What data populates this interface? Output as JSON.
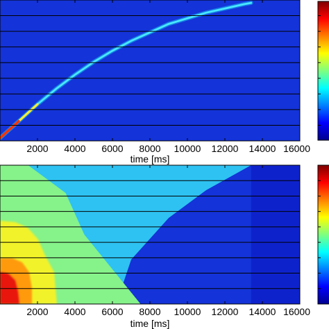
{
  "chart_data": [
    {
      "type": "heatmap",
      "panel": "top",
      "xlabel": "time [ms]",
      "xlim": [
        0,
        16000
      ],
      "xticks": [
        2000,
        4000,
        6000,
        8000,
        10000,
        12000,
        14000,
        16000
      ],
      "grid": "horizontal",
      "background_color": "#1433d8",
      "colormap": "jet",
      "colorbar": "right",
      "ridge": {
        "x": [
          0,
          1000,
          2000,
          3000,
          4000,
          5000,
          6000,
          7000,
          8000,
          9000,
          10000,
          11000,
          12000,
          13000,
          13400
        ],
        "y": [
          0.02,
          0.14,
          0.26,
          0.37,
          0.47,
          0.56,
          0.64,
          0.71,
          0.77,
          0.83,
          0.87,
          0.91,
          0.94,
          0.97,
          0.98
        ],
        "peak_color_start": "#ff3000",
        "peak_color_end": "#3fd8ff"
      }
    },
    {
      "type": "heatmap",
      "panel": "bottom",
      "xlabel": "time [ms]",
      "xlim": [
        0,
        16000
      ],
      "xticks": [
        2000,
        4000,
        6000,
        8000,
        10000,
        12000,
        14000,
        16000
      ],
      "grid": "horizontal",
      "colormap": "jet",
      "colorbar": "right",
      "boundaries": {
        "green_cyan": {
          "x": [
            1500,
            3500,
            4500,
            6000,
            7500
          ],
          "y": [
            1.0,
            0.8,
            0.5,
            0.25,
            0.0
          ]
        },
        "cyan_blue": {
          "x": [
            13400,
            11000,
            9000,
            7000,
            6200
          ],
          "y": [
            1.0,
            0.82,
            0.62,
            0.32,
            0.0
          ]
        },
        "blue_end": 13400
      }
    }
  ]
}
